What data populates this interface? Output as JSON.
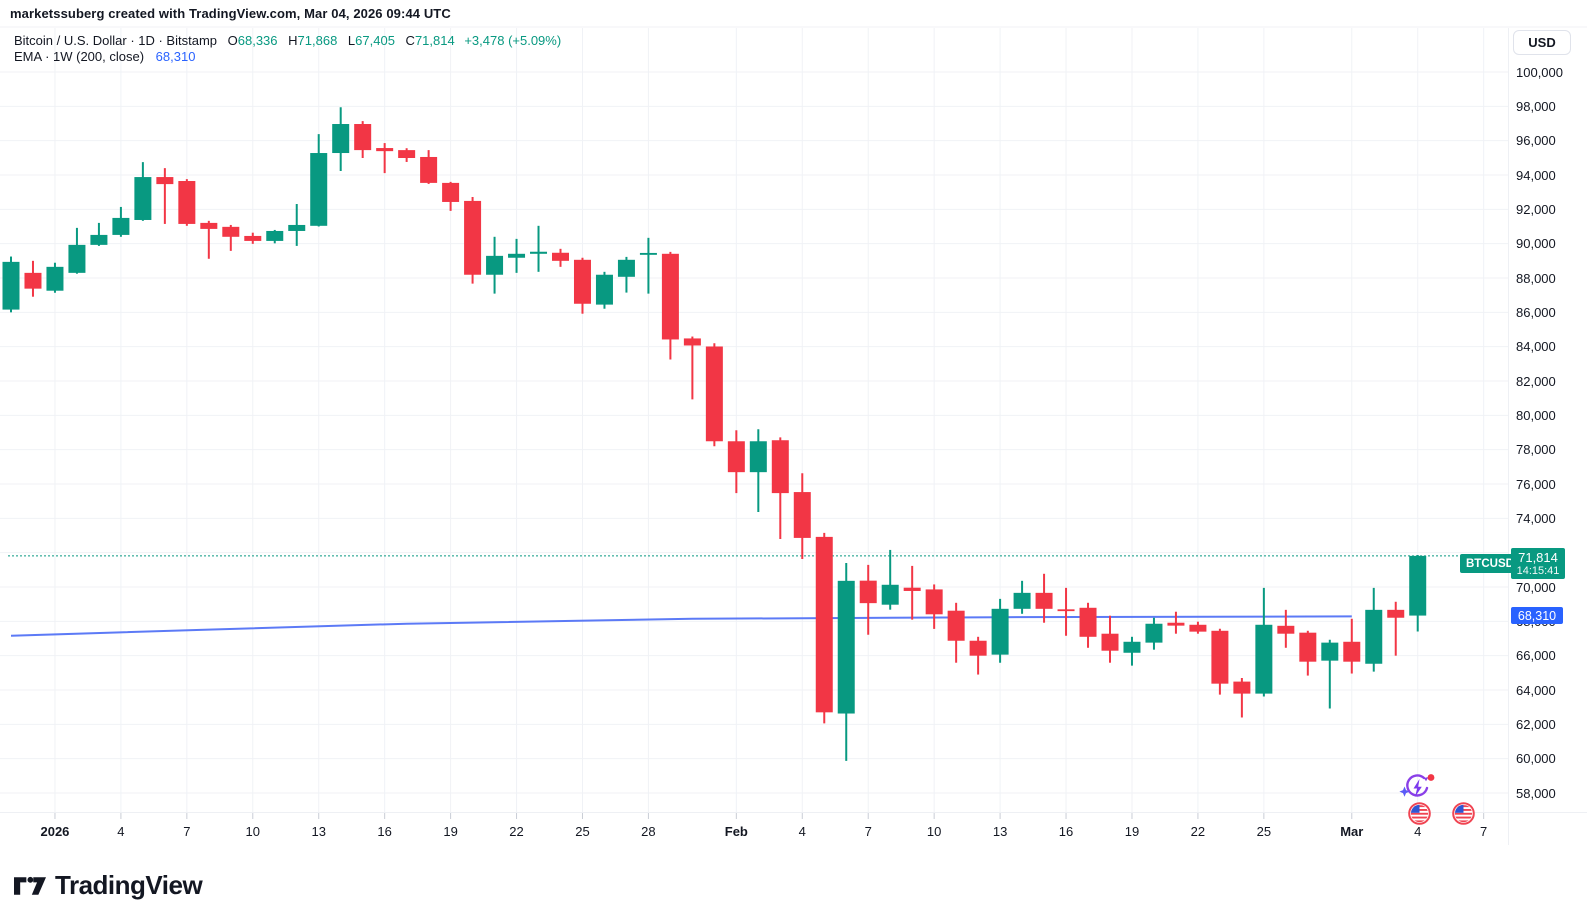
{
  "watermark": "marketssuberg created with TradingView.com, Mar 04, 2026 09:44 UTC",
  "legend": {
    "symbol_line": {
      "symbol": "Bitcoin / U.S. Dollar · 1D · Bitstamp",
      "o_key": "O",
      "o_val": "68,336",
      "h_key": "H",
      "h_val": "71,868",
      "l_key": "L",
      "l_val": "67,405",
      "c_key": "C",
      "c_val": "71,814",
      "change": "+3,478 (+5.09%)"
    },
    "indicator_line": {
      "name": "EMA · 1W (200, close)",
      "value": "68,310"
    }
  },
  "price_axis": {
    "currency_button": "USD",
    "ticks": [
      "100,000",
      "98,000",
      "96,000",
      "94,000",
      "92,000",
      "90,000",
      "88,000",
      "86,000",
      "84,000",
      "82,000",
      "80,000",
      "78,000",
      "76,000",
      "74,000",
      "72,000",
      "70,000",
      "68,000",
      "66,000",
      "64,000",
      "62,000",
      "60,000",
      "58,000"
    ],
    "labels": {
      "symbol_tag": "BTCUSD",
      "last_price": "71,814",
      "countdown": "14:15:41",
      "ema_value": "68,310"
    }
  },
  "time_axis": {
    "ticks": [
      {
        "label": "2026",
        "day": 2,
        "bold": true
      },
      {
        "label": "4",
        "day": 5
      },
      {
        "label": "7",
        "day": 8
      },
      {
        "label": "10",
        "day": 11
      },
      {
        "label": "13",
        "day": 14
      },
      {
        "label": "16",
        "day": 17
      },
      {
        "label": "19",
        "day": 20
      },
      {
        "label": "22",
        "day": 23
      },
      {
        "label": "25",
        "day": 26
      },
      {
        "label": "28",
        "day": 29
      },
      {
        "label": "Feb",
        "day": 33,
        "bold": true
      },
      {
        "label": "4",
        "day": 36
      },
      {
        "label": "7",
        "day": 39
      },
      {
        "label": "10",
        "day": 42
      },
      {
        "label": "13",
        "day": 45
      },
      {
        "label": "16",
        "day": 48
      },
      {
        "label": "19",
        "day": 51
      },
      {
        "label": "22",
        "day": 54
      },
      {
        "label": "25",
        "day": 57
      },
      {
        "label": "Mar",
        "day": 61,
        "bold": true
      },
      {
        "label": "4",
        "day": 64
      },
      {
        "label": "7",
        "day": 67
      }
    ],
    "event_markers": [
      {
        "day": 64,
        "icon": "us-flag"
      },
      {
        "day": 66,
        "icon": "us-flag"
      }
    ]
  },
  "footer": {
    "brand": "TradingView"
  },
  "colors": {
    "up": "#089981",
    "down": "#F23645",
    "ema_line": "#4a6cf5",
    "last_price_line": "#089981",
    "ema_label_bg": "#2962FF",
    "grid": "#f0f2f6",
    "text": "#131722"
  },
  "chart_data": {
    "type": "candlestick",
    "symbol": "BTCUSD",
    "exchange": "Bitstamp",
    "interval": "1D",
    "title": "Bitcoin / U.S. Dollar",
    "ylabel": "USD",
    "ylim": [
      57000,
      101500
    ],
    "grid": true,
    "last_price": 71814,
    "dates": [
      "Dec 30",
      "Dec 31",
      "Jan 1",
      "Jan 2",
      "Jan 3",
      "Jan 4",
      "Jan 5",
      "Jan 6",
      "Jan 7",
      "Jan 8",
      "Jan 9",
      "Jan 10",
      "Jan 11",
      "Jan 12",
      "Jan 13",
      "Jan 14",
      "Jan 15",
      "Jan 16",
      "Jan 17",
      "Jan 18",
      "Jan 19",
      "Jan 20",
      "Jan 21",
      "Jan 22",
      "Jan 23",
      "Jan 24",
      "Jan 25",
      "Jan 26",
      "Jan 27",
      "Jan 28",
      "Jan 29",
      "Jan 30",
      "Jan 31",
      "Feb 1",
      "Feb 2",
      "Feb 3",
      "Feb 4",
      "Feb 5",
      "Feb 6",
      "Feb 7",
      "Feb 8",
      "Feb 9",
      "Feb 10",
      "Feb 11",
      "Feb 12",
      "Feb 13",
      "Feb 14",
      "Feb 15",
      "Feb 16",
      "Feb 17",
      "Feb 18",
      "Feb 19",
      "Feb 20",
      "Feb 21",
      "Feb 22",
      "Feb 23",
      "Feb 24",
      "Feb 25",
      "Feb 26",
      "Feb 27",
      "Feb 28",
      "Mar 1",
      "Mar 2",
      "Mar 3",
      "Mar 4"
    ],
    "candles": [
      [
        86160,
        89250,
        86000,
        88940
      ],
      [
        88300,
        89000,
        86910,
        87380
      ],
      [
        87260,
        88890,
        87140,
        88650
      ],
      [
        88300,
        90920,
        88250,
        89930
      ],
      [
        89930,
        91210,
        89870,
        90510
      ],
      [
        90510,
        92140,
        90400,
        91500
      ],
      [
        91380,
        94750,
        91330,
        93880
      ],
      [
        93880,
        94400,
        91150,
        93470
      ],
      [
        93650,
        93760,
        91040,
        91150
      ],
      [
        91210,
        91330,
        89120,
        90860
      ],
      [
        90980,
        91090,
        89580,
        90400
      ],
      [
        90450,
        90640,
        89990,
        90160
      ],
      [
        90160,
        90800,
        90020,
        90740
      ],
      [
        90740,
        92310,
        89870,
        91090
      ],
      [
        91040,
        96380,
        91000,
        95280
      ],
      [
        95280,
        97950,
        94230,
        96970
      ],
      [
        96970,
        97140,
        94990,
        95450
      ],
      [
        95570,
        95860,
        94110,
        95390
      ],
      [
        95450,
        95560,
        94760,
        94990
      ],
      [
        95050,
        95450,
        93480,
        93540
      ],
      [
        93540,
        93600,
        91910,
        92430
      ],
      [
        92490,
        92720,
        87670,
        88190
      ],
      [
        88190,
        90400,
        87090,
        89290
      ],
      [
        89180,
        90280,
        88300,
        89410
      ],
      [
        89410,
        91040,
        88360,
        89530
      ],
      [
        89470,
        89700,
        88650,
        89000
      ],
      [
        89060,
        89180,
        85920,
        86500
      ],
      [
        86450,
        88360,
        86210,
        88190
      ],
      [
        88070,
        89230,
        87150,
        89060
      ],
      [
        89350,
        90340,
        87090,
        89460
      ],
      [
        89410,
        89520,
        83250,
        84420
      ],
      [
        84480,
        84590,
        80930,
        84070
      ],
      [
        84010,
        84200,
        78200,
        78490
      ],
      [
        78490,
        79130,
        75470,
        76690
      ],
      [
        76690,
        79190,
        74370,
        78490
      ],
      [
        78550,
        78720,
        72800,
        75470
      ],
      [
        75530,
        76630,
        71630,
        72860
      ],
      [
        72920,
        73150,
        62060,
        62700
      ],
      [
        62630,
        71400,
        59870,
        70360
      ],
      [
        70370,
        71290,
        67220,
        69060
      ],
      [
        68970,
        72160,
        68680,
        70130
      ],
      [
        69960,
        71230,
        68100,
        69770
      ],
      [
        69860,
        70150,
        67560,
        68410
      ],
      [
        68620,
        69080,
        65590,
        66870
      ],
      [
        66870,
        67100,
        64900,
        66000
      ],
      [
        66060,
        69310,
        65590,
        68730
      ],
      [
        68730,
        70360,
        68440,
        69660
      ],
      [
        69660,
        70770,
        67920,
        68730
      ],
      [
        68700,
        69950,
        67160,
        68670
      ],
      [
        68790,
        69080,
        66460,
        67100
      ],
      [
        67280,
        68330,
        65590,
        66290
      ],
      [
        66170,
        67100,
        65420,
        66810
      ],
      [
        66760,
        68210,
        66350,
        67860
      ],
      [
        67920,
        68560,
        67280,
        67750
      ],
      [
        67800,
        67980,
        67280,
        67400
      ],
      [
        67450,
        67570,
        63730,
        64370
      ],
      [
        64490,
        64700,
        62400,
        63790
      ],
      [
        63790,
        69950,
        63620,
        67800
      ],
      [
        67740,
        68670,
        66460,
        67280
      ],
      [
        67340,
        67450,
        64840,
        65650
      ],
      [
        65710,
        66930,
        62920,
        66760
      ],
      [
        66810,
        68150,
        64960,
        65650
      ],
      [
        65530,
        69950,
        65070,
        68670
      ],
      [
        68670,
        69140,
        66000,
        68210
      ],
      [
        68336,
        71868,
        67405,
        71814
      ]
    ],
    "ema_weekly_200": {
      "period": 200,
      "timeframe": "1W",
      "source": "close",
      "value": 68310,
      "points": [
        [
          0,
          67160
        ],
        [
          9,
          67520
        ],
        [
          18,
          67860
        ],
        [
          31,
          68150
        ],
        [
          45,
          68240
        ],
        [
          61,
          68290
        ]
      ]
    }
  }
}
